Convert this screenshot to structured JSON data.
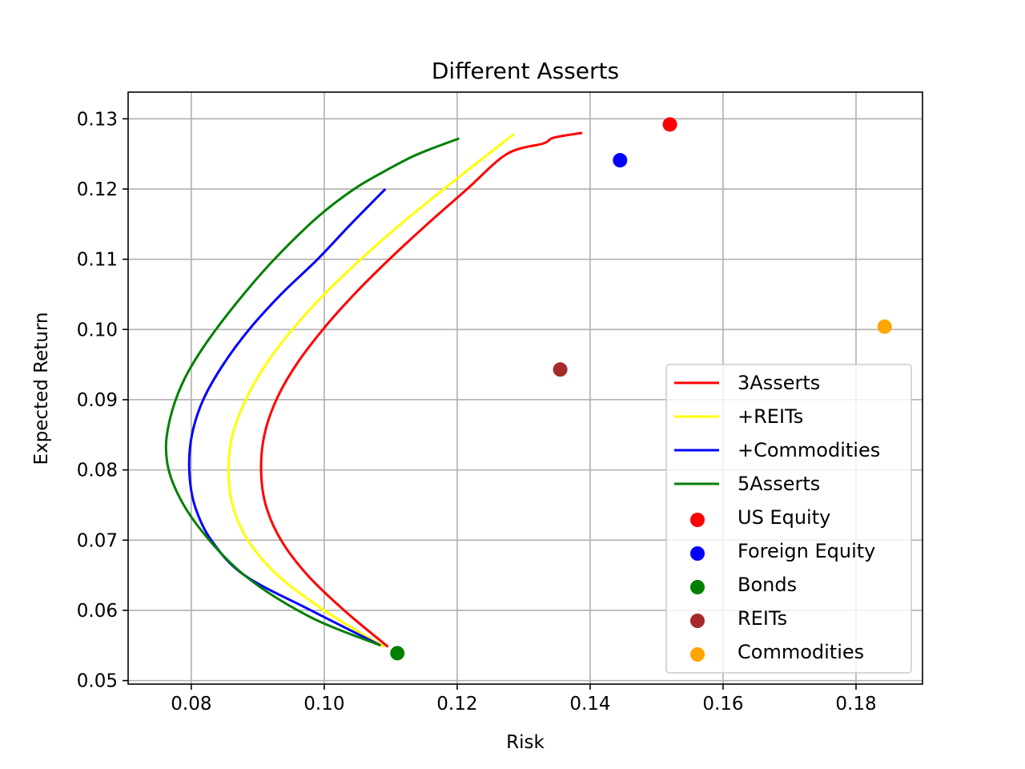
{
  "chart_data": {
    "type": "line",
    "title": "Different Asserts",
    "xlabel": "Risk",
    "ylabel": "Expected Return",
    "xlim": [
      0.0705,
      0.19
    ],
    "ylim": [
      0.0495,
      0.1338
    ],
    "xticks": [
      0.08,
      0.1,
      0.12,
      0.14,
      0.16,
      0.18
    ],
    "xtick_labels": [
      "0.08",
      "0.10",
      "0.12",
      "0.14",
      "0.16",
      "0.18"
    ],
    "yticks": [
      0.05,
      0.06,
      0.07,
      0.08,
      0.09,
      0.1,
      0.11,
      0.12,
      0.13
    ],
    "ytick_labels": [
      "0.05",
      "0.06",
      "0.07",
      "0.08",
      "0.09",
      "0.10",
      "0.11",
      "0.12",
      "0.13"
    ],
    "grid": true,
    "legend_position": "lower-right",
    "series": [
      {
        "name": "3Asserts",
        "color": "#ff0000",
        "points": [
          [
            0.1096,
            0.0548
          ],
          [
            0.103,
            0.06
          ],
          [
            0.0975,
            0.065
          ],
          [
            0.0935,
            0.07
          ],
          [
            0.0912,
            0.075
          ],
          [
            0.0905,
            0.08
          ],
          [
            0.091,
            0.085
          ],
          [
            0.0928,
            0.09
          ],
          [
            0.0958,
            0.095
          ],
          [
            0.0998,
            0.1
          ],
          [
            0.1045,
            0.105
          ],
          [
            0.1098,
            0.11
          ],
          [
            0.1155,
            0.115
          ],
          [
            0.1215,
            0.12
          ],
          [
            0.1275,
            0.125
          ],
          [
            0.133,
            0.1265
          ],
          [
            0.1345,
            0.1273
          ],
          [
            0.1388,
            0.128
          ]
        ]
      },
      {
        "name": "+REITs",
        "color": "#ffff00",
        "points": [
          [
            0.109,
            0.0548
          ],
          [
            0.1,
            0.06
          ],
          [
            0.093,
            0.065
          ],
          [
            0.0885,
            0.07
          ],
          [
            0.0862,
            0.075
          ],
          [
            0.0856,
            0.08
          ],
          [
            0.0862,
            0.085
          ],
          [
            0.0882,
            0.09
          ],
          [
            0.0912,
            0.095
          ],
          [
            0.0952,
            0.1
          ],
          [
            0.1,
            0.105
          ],
          [
            0.1055,
            0.11
          ],
          [
            0.1115,
            0.115
          ],
          [
            0.118,
            0.12
          ],
          [
            0.1247,
            0.125
          ],
          [
            0.1285,
            0.1278
          ]
        ]
      },
      {
        "name": "+Commodities",
        "color": "#0000ff",
        "points": [
          [
            0.1085,
            0.055
          ],
          [
            0.098,
            0.06
          ],
          [
            0.088,
            0.065
          ],
          [
            0.083,
            0.07
          ],
          [
            0.0805,
            0.075
          ],
          [
            0.0797,
            0.08
          ],
          [
            0.0801,
            0.085
          ],
          [
            0.0818,
            0.09
          ],
          [
            0.0848,
            0.095
          ],
          [
            0.0887,
            0.1
          ],
          [
            0.0935,
            0.105
          ],
          [
            0.099,
            0.11
          ],
          [
            0.104,
            0.115
          ],
          [
            0.1092,
            0.12
          ]
        ]
      },
      {
        "name": "5Asserts",
        "color": "#008000",
        "points": [
          [
            0.1085,
            0.055
          ],
          [
            0.098,
            0.059
          ],
          [
            0.088,
            0.065
          ],
          [
            0.081,
            0.072
          ],
          [
            0.0773,
            0.078
          ],
          [
            0.0762,
            0.083
          ],
          [
            0.077,
            0.088
          ],
          [
            0.079,
            0.093
          ],
          [
            0.0822,
            0.098
          ],
          [
            0.087,
            0.104
          ],
          [
            0.0925,
            0.11
          ],
          [
            0.099,
            0.116
          ],
          [
            0.1045,
            0.12
          ],
          [
            0.109,
            0.1225
          ],
          [
            0.113,
            0.1245
          ],
          [
            0.116,
            0.1257
          ],
          [
            0.1203,
            0.1272
          ]
        ]
      }
    ],
    "scatter": [
      {
        "name": "US Equity",
        "color": "#ff0000",
        "x": 0.152,
        "y": 0.1292
      },
      {
        "name": "Foreign Equity",
        "color": "#0000ff",
        "x": 0.1445,
        "y": 0.1241
      },
      {
        "name": "Bonds",
        "color": "#008000",
        "x": 0.111,
        "y": 0.0539
      },
      {
        "name": "REITs",
        "color": "#a52a2a",
        "x": 0.1355,
        "y": 0.0943
      },
      {
        "name": "Commodities",
        "color": "#ffa500",
        "x": 0.1843,
        "y": 0.1004
      }
    ]
  }
}
